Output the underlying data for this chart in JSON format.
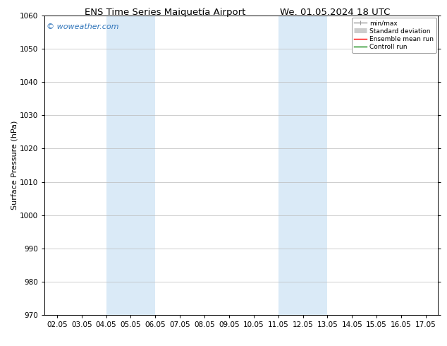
{
  "title_left": "ENS Time Series Maiquetía Airport",
  "title_right": "We. 01.05.2024 18 UTC",
  "ylabel": "Surface Pressure (hPa)",
  "ylim": [
    970,
    1060
  ],
  "yticks": [
    970,
    980,
    990,
    1000,
    1010,
    1020,
    1030,
    1040,
    1050,
    1060
  ],
  "xlim": [
    0,
    15
  ],
  "xtick_labels": [
    "02.05",
    "03.05",
    "04.05",
    "05.05",
    "06.05",
    "07.05",
    "08.05",
    "09.05",
    "10.05",
    "11.05",
    "12.05",
    "13.05",
    "14.05",
    "15.05",
    "16.05",
    "17.05"
  ],
  "xtick_positions": [
    0,
    1,
    2,
    3,
    4,
    5,
    6,
    7,
    8,
    9,
    10,
    11,
    12,
    13,
    14,
    15
  ],
  "shaded_bands": [
    {
      "xmin": 2,
      "xmax": 4,
      "color": "#daeaf7"
    },
    {
      "xmin": 9,
      "xmax": 11,
      "color": "#daeaf7"
    }
  ],
  "watermark": "© woweather.com",
  "watermark_color": "#3377bb",
  "background_color": "#ffffff",
  "plot_bg_color": "#ffffff",
  "grid_color": "#bbbbbb",
  "legend_items": [
    {
      "label": "min/max",
      "color": "#999999",
      "lw": 1.0
    },
    {
      "label": "Standard deviation",
      "color": "#cccccc",
      "lw": 5
    },
    {
      "label": "Ensemble mean run",
      "color": "#ff0000",
      "lw": 1.0
    },
    {
      "label": "Controll run",
      "color": "#008000",
      "lw": 1.0
    }
  ],
  "title_fontsize": 9.5,
  "tick_fontsize": 7.5,
  "ylabel_fontsize": 8,
  "watermark_fontsize": 8
}
